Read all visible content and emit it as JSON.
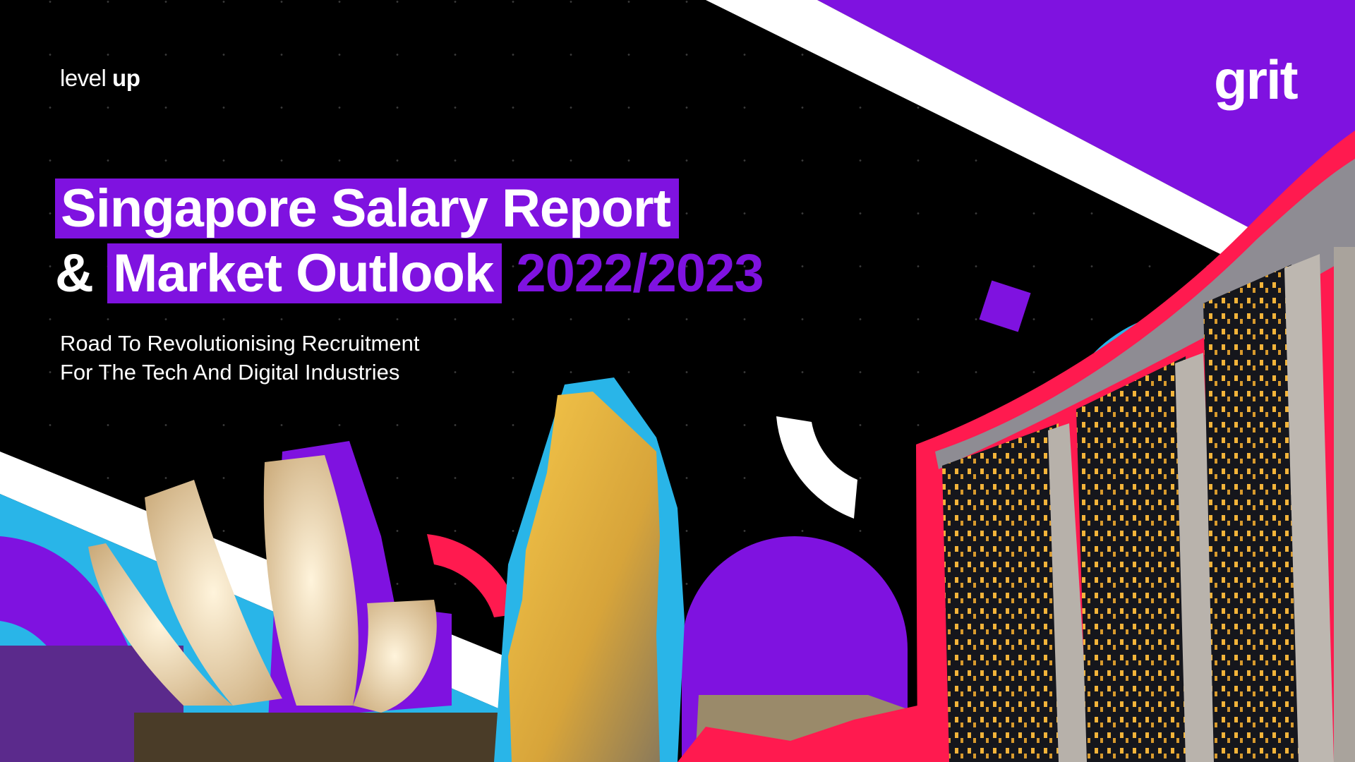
{
  "brand": {
    "prefix": "level",
    "emphasis": "up"
  },
  "logo": "grit",
  "title": {
    "line1": "Singapore Salary Report",
    "line2_prefix": "&",
    "line2_highlight": "Market Outlook",
    "year": "2022/2023"
  },
  "subtitle": {
    "line1": "Road To Revolutionising Recruitment",
    "line2": "For The Tech And Digital Industries"
  },
  "colors": {
    "purple": "#7f12e0",
    "blue": "#29b5e8",
    "pink": "#ff1a4f",
    "white": "#ffffff",
    "background": "#000000"
  }
}
